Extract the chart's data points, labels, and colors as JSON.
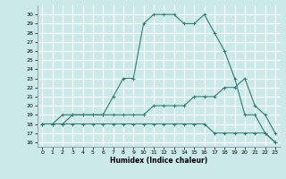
{
  "title": "",
  "xlabel": "Humidex (Indice chaleur)",
  "bg_color": "#cce9e9",
  "grid_color": "#ffffff",
  "line_color": "#2e7d6e",
  "xlim": [
    -0.5,
    23.5
  ],
  "ylim": [
    15.5,
    31.0
  ],
  "xticks": [
    0,
    1,
    2,
    3,
    4,
    5,
    6,
    7,
    8,
    9,
    10,
    11,
    12,
    13,
    14,
    15,
    16,
    17,
    18,
    19,
    20,
    21,
    22,
    23
  ],
  "yticks": [
    16,
    17,
    18,
    19,
    20,
    21,
    22,
    23,
    24,
    25,
    26,
    27,
    28,
    29,
    30
  ],
  "line1_x": [
    0,
    1,
    2,
    3,
    4,
    5,
    6,
    7,
    8,
    9,
    10,
    11,
    12,
    13,
    14,
    15,
    16,
    17,
    18,
    19,
    20,
    21,
    22,
    23
  ],
  "line1_y": [
    18,
    18,
    19,
    19,
    19,
    19,
    19,
    21,
    23,
    23,
    29,
    30,
    30,
    30,
    29,
    29,
    30,
    28,
    26,
    23,
    19,
    19,
    17,
    16
  ],
  "line2_x": [
    0,
    1,
    2,
    3,
    4,
    5,
    6,
    7,
    8,
    9,
    10,
    11,
    12,
    13,
    14,
    15,
    16,
    17,
    18,
    19,
    20,
    21,
    22,
    23
  ],
  "line2_y": [
    18,
    18,
    18,
    19,
    19,
    19,
    19,
    19,
    19,
    19,
    19,
    20,
    20,
    20,
    20,
    21,
    21,
    21,
    22,
    22,
    23,
    20,
    19,
    17
  ],
  "line3_x": [
    0,
    1,
    2,
    3,
    4,
    5,
    6,
    7,
    8,
    9,
    10,
    11,
    12,
    13,
    14,
    15,
    16,
    17,
    18,
    19,
    20,
    21,
    22,
    23
  ],
  "line3_y": [
    18,
    18,
    18,
    18,
    18,
    18,
    18,
    18,
    18,
    18,
    18,
    18,
    18,
    18,
    18,
    18,
    18,
    17,
    17,
    17,
    17,
    17,
    17,
    16
  ]
}
